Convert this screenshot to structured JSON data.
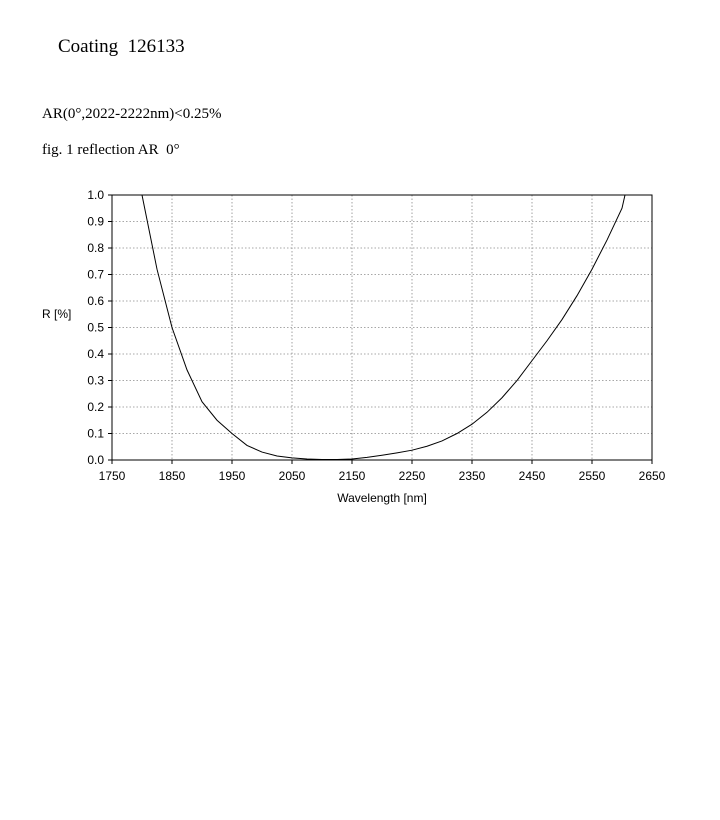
{
  "header": {
    "title": "Coating  126133",
    "spec": "AR(0°,2022-2222nm)<0.25%",
    "caption": "fig. 1 reflection AR  0°"
  },
  "chart_data": {
    "type": "line",
    "title": "",
    "xlabel": "Wavelength [nm]",
    "ylabel": "R [%]",
    "xlim": [
      1750,
      2650
    ],
    "ylim": [
      0.0,
      1.0
    ],
    "xticks": [
      1750,
      1850,
      1950,
      2050,
      2150,
      2250,
      2350,
      2450,
      2550,
      2650
    ],
    "yticks": [
      0.0,
      0.1,
      0.2,
      0.3,
      0.4,
      0.5,
      0.6,
      0.7,
      0.8,
      0.9,
      1.0
    ],
    "grid": true,
    "legend": "none",
    "line_color": "#000000",
    "series": [
      {
        "x": [
          1800,
          1825,
          1850,
          1875,
          1900,
          1925,
          1950,
          1975,
          2000,
          2025,
          2050,
          2075,
          2100,
          2125,
          2150,
          2175,
          2200,
          2225,
          2250,
          2275,
          2300,
          2325,
          2350,
          2375,
          2400,
          2425,
          2450,
          2475,
          2500,
          2525,
          2550,
          2575,
          2600,
          2605
        ],
        "y": [
          1.0,
          0.72,
          0.5,
          0.34,
          0.22,
          0.15,
          0.1,
          0.055,
          0.03,
          0.015,
          0.008,
          0.004,
          0.002,
          0.002,
          0.004,
          0.01,
          0.018,
          0.027,
          0.037,
          0.052,
          0.072,
          0.1,
          0.135,
          0.18,
          0.235,
          0.3,
          0.375,
          0.45,
          0.53,
          0.62,
          0.72,
          0.83,
          0.95,
          1.0
        ]
      }
    ]
  }
}
